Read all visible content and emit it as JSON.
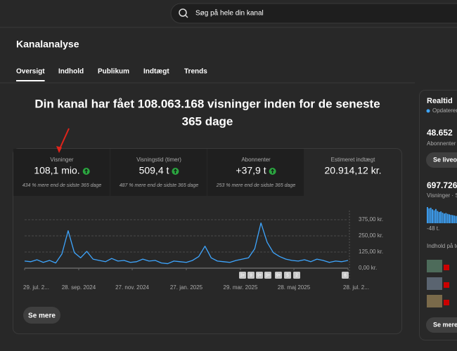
{
  "search": {
    "placeholder": "Søg på hele din kanal"
  },
  "page": {
    "title": "Kanalanalyse",
    "tabs": [
      "Oversigt",
      "Indhold",
      "Publikum",
      "Indtægt",
      "Trends"
    ],
    "active_tab": 0,
    "headline": [
      "Din kanal har fået 108.063.168 visninger inden for de seneste",
      "365 dage"
    ],
    "metrics": [
      {
        "label": "Visninger",
        "value": "108,1 mio.",
        "note": "434 % mere end de sidste 365 dage"
      },
      {
        "label": "Visningstid (timer)",
        "value": "509,4 t",
        "note": "487 % mere end de sidste 365 dage"
      },
      {
        "label": "Abonnenter",
        "value": "+37,9 t",
        "note": "253 % mere end de sidste 365 dage"
      },
      {
        "label": "Estimeret indtægt",
        "value": "20.914,12 kr."
      }
    ],
    "chart_markers": [
      "3+",
      "9",
      "9+",
      "3+",
      "9+",
      "5",
      "2",
      "6"
    ],
    "more_button": "Se mere"
  },
  "chart_data": {
    "type": "line",
    "color": "#3ea6ff",
    "values": [
      55,
      50,
      65,
      45,
      60,
      40,
      110,
      290,
      120,
      80,
      130,
      70,
      60,
      50,
      75,
      55,
      60,
      45,
      50,
      70,
      55,
      60,
      40,
      35,
      55,
      50,
      45,
      60,
      90,
      170,
      80,
      55,
      50,
      45,
      60,
      70,
      80,
      150,
      350,
      200,
      120,
      90,
      70,
      60,
      55,
      65,
      50,
      70,
      60,
      45,
      55,
      50,
      60
    ],
    "xlim": [
      0,
      52
    ],
    "xticks": [
      {
        "value": 0,
        "label": "29. jul. 2..."
      },
      {
        "value": 8.7,
        "label": "28. sep. 2024"
      },
      {
        "value": 17.3,
        "label": "27. nov. 2024"
      },
      {
        "value": 26,
        "label": "27. jan. 2025"
      },
      {
        "value": 34.7,
        "label": "29. mar. 2025"
      },
      {
        "value": 43.3,
        "label": "28. maj 2025"
      },
      {
        "value": 52,
        "label": "28. jul. 2..."
      }
    ],
    "ylim": [
      0,
      375
    ],
    "yticks": [
      {
        "value": 0,
        "label": "0,00 kr."
      },
      {
        "value": 125,
        "label": "125,00 kr."
      },
      {
        "value": 250,
        "label": "250,00 kr."
      },
      {
        "value": 375,
        "label": "375,00 kr."
      }
    ],
    "grid": true
  },
  "realtime": {
    "title": "Realtid",
    "status": "Opdaterer",
    "subscribers": "48.652",
    "subscribers_label": "Abonnenter",
    "live_button": "Se liveop",
    "views": "697.726",
    "views_label": "Visninger · S",
    "bars": [
      100,
      92,
      96,
      86,
      80,
      88,
      76,
      70,
      73,
      66,
      60,
      63,
      58,
      55,
      52,
      50,
      48,
      45,
      47,
      42
    ],
    "bars_axis": "-48 t.",
    "content_label": "Indhold på to",
    "more_button": "Se mere"
  }
}
